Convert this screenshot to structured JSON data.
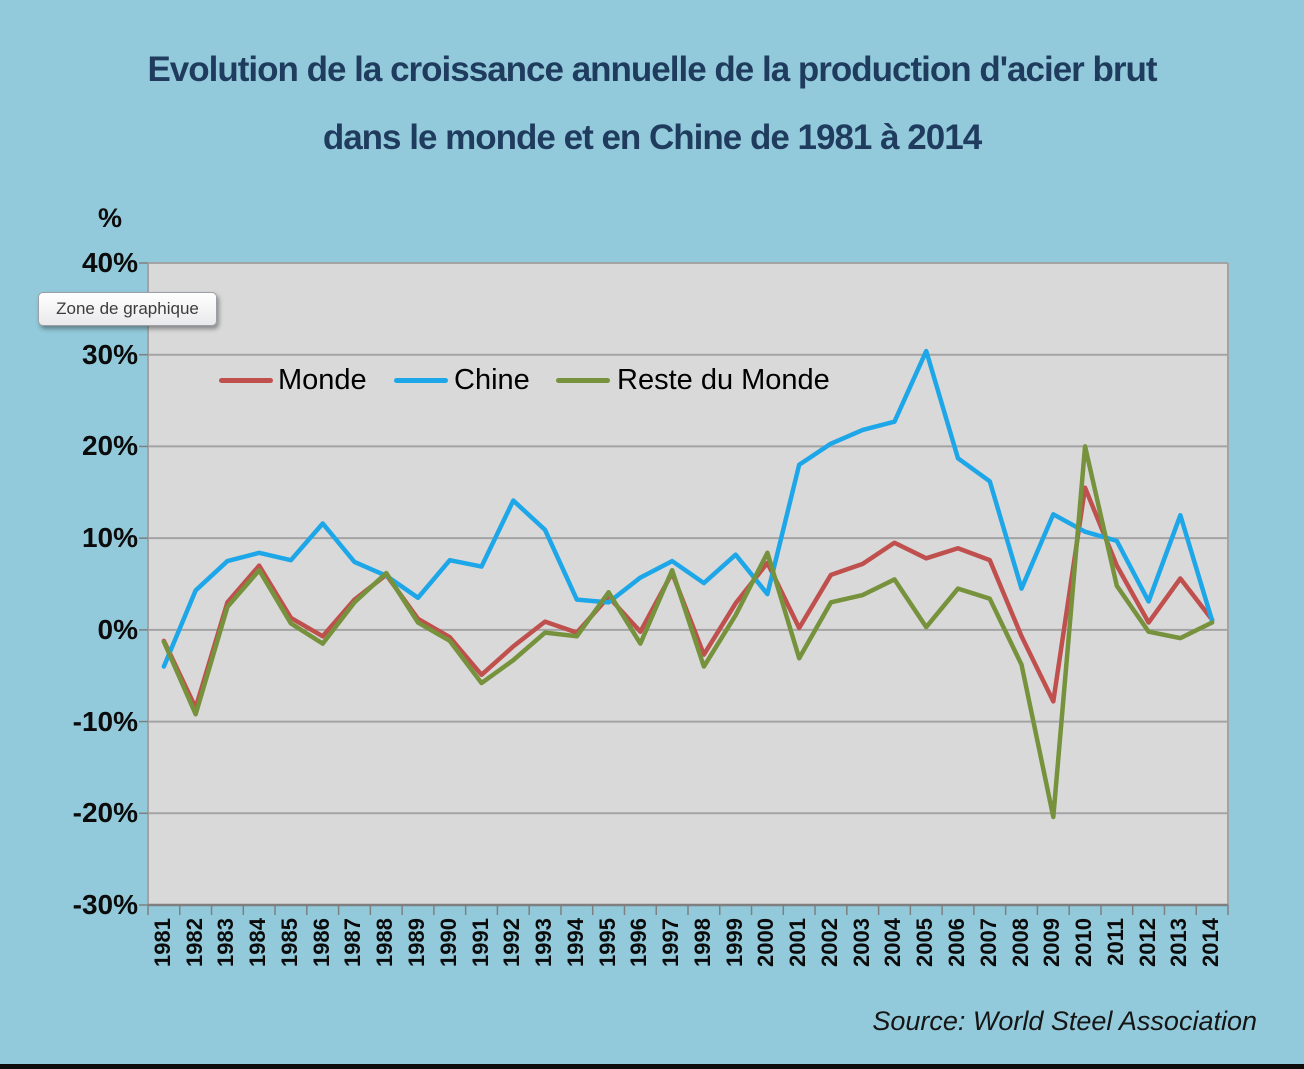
{
  "title": {
    "line1": "Evolution de la croissance annuelle de la production d'acier brut",
    "line2": "dans le monde et en Chine de 1981 à 2014"
  },
  "tooltip": {
    "text": "Zone de graphique"
  },
  "source": {
    "text": "Source: World Steel Association"
  },
  "y_axis": {
    "unit_label": "%",
    "tick_labels": [
      "40%",
      "30%",
      "20%",
      "10%",
      "0%",
      "-10%",
      "-20%",
      "-30%"
    ]
  },
  "legend": [
    {
      "label": "Monde",
      "color": "#c0504d"
    },
    {
      "label": "Chine",
      "color": "#1ea7e8"
    },
    {
      "label": "Reste du Monde",
      "color": "#76923c"
    }
  ],
  "colors": {
    "page_background": "#92cadb",
    "plot_background": "#d9d9d9",
    "gridline": "#a3a3a3",
    "axis_line": "#7f7f7f",
    "title_text": "#1f3c5f",
    "monde": "#c0504d",
    "chine": "#1ea7e8",
    "reste_du_monde": "#76923c"
  },
  "chart_data": {
    "type": "line",
    "title": "Evolution de la croissance annuelle de la production d'acier brut dans le monde et en Chine de 1981 à 2014",
    "ylabel": "%",
    "ylim": [
      -30,
      40
    ],
    "ytick_step": 10,
    "grid": true,
    "legend_position": "top-left-inside",
    "x": [
      1981,
      1982,
      1983,
      1984,
      1985,
      1986,
      1987,
      1988,
      1989,
      1990,
      1991,
      1992,
      1993,
      1994,
      1995,
      1996,
      1997,
      1998,
      1999,
      2000,
      2001,
      2002,
      2003,
      2004,
      2005,
      2006,
      2007,
      2008,
      2009,
      2010,
      2011,
      2012,
      2013,
      2014
    ],
    "series": [
      {
        "name": "Monde",
        "color": "#c0504d",
        "values": [
          -1.2,
          -8.5,
          3.0,
          7.0,
          1.3,
          -0.7,
          3.3,
          6.0,
          1.2,
          -0.8,
          -4.9,
          -1.8,
          0.9,
          -0.3,
          3.6,
          -0.2,
          6.2,
          -2.7,
          2.9,
          7.3,
          0.2,
          6.0,
          7.2,
          9.5,
          7.8,
          8.9,
          7.6,
          -0.7,
          -7.8,
          15.5,
          7.0,
          0.8,
          5.6,
          1.1
        ]
      },
      {
        "name": "Chine",
        "color": "#1ea7e8",
        "values": [
          -4.0,
          4.3,
          7.5,
          8.4,
          7.6,
          11.6,
          7.4,
          5.9,
          3.5,
          7.6,
          6.9,
          14.1,
          10.9,
          3.3,
          3.0,
          5.7,
          7.5,
          5.1,
          8.2,
          3.9,
          18.0,
          20.3,
          21.8,
          22.7,
          30.4,
          18.7,
          16.2,
          4.5,
          12.6,
          10.7,
          9.7,
          3.1,
          12.5,
          1.0
        ]
      },
      {
        "name": "Reste du Monde",
        "color": "#76923c",
        "values": [
          -1.3,
          -9.2,
          2.5,
          6.5,
          0.7,
          -1.5,
          3.0,
          6.2,
          0.8,
          -1.2,
          -5.8,
          -3.3,
          -0.3,
          -0.7,
          4.1,
          -1.5,
          6.5,
          -4.0,
          1.6,
          8.4,
          -3.1,
          3.0,
          3.8,
          5.5,
          0.3,
          4.5,
          3.4,
          -3.8,
          -20.4,
          20.0,
          4.8,
          -0.2,
          -0.9,
          0.8
        ]
      }
    ]
  }
}
